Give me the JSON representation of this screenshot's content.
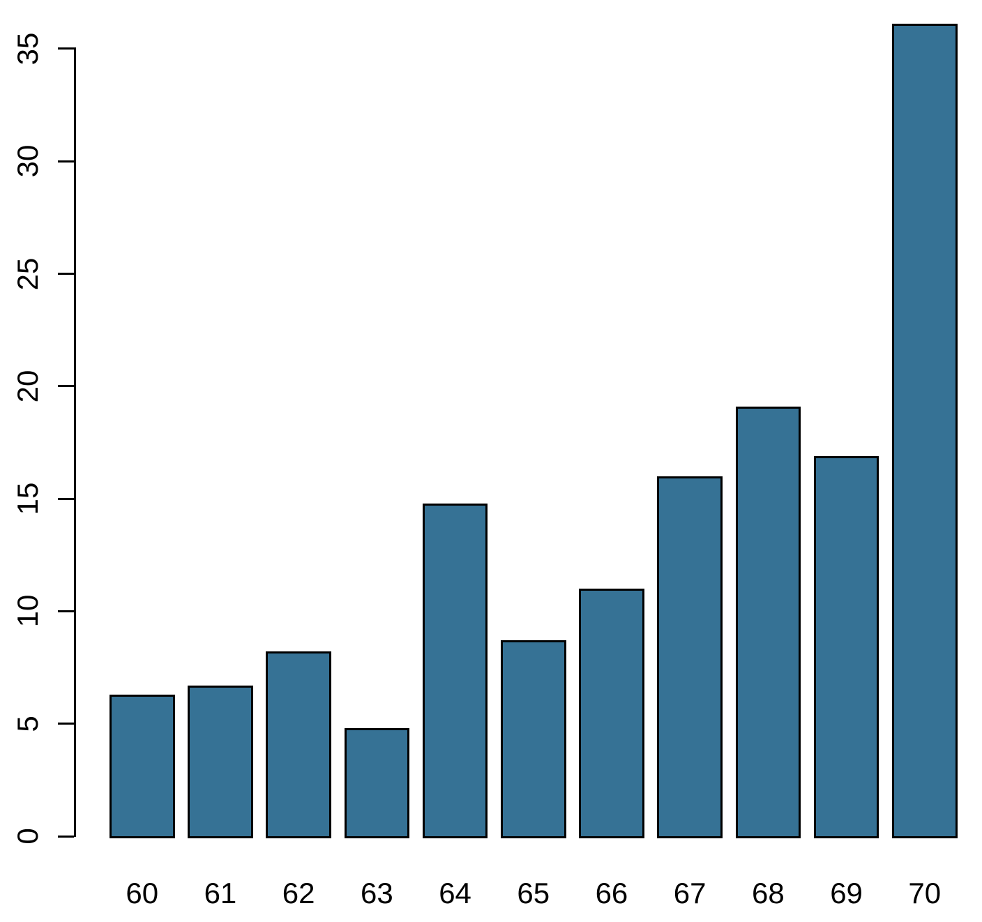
{
  "chart_data": {
    "type": "bar",
    "title": "",
    "xlabel": "",
    "ylabel": "",
    "categories": [
      "60",
      "61",
      "62",
      "63",
      "64",
      "65",
      "66",
      "67",
      "68",
      "69",
      "70"
    ],
    "values": [
      6.3,
      6.7,
      8.2,
      4.8,
      14.8,
      8.7,
      11.0,
      16.0,
      19.1,
      16.9,
      36.1
    ],
    "ylim": [
      0,
      35
    ],
    "yticks": [
      0,
      5,
      10,
      15,
      20,
      25,
      30,
      35
    ],
    "grid": false,
    "legend": "none",
    "colors": {
      "bar_fill": "#367295",
      "bar_border": "#000000",
      "axis": "#000000",
      "text": "#000000",
      "background": "#ffffff"
    }
  }
}
